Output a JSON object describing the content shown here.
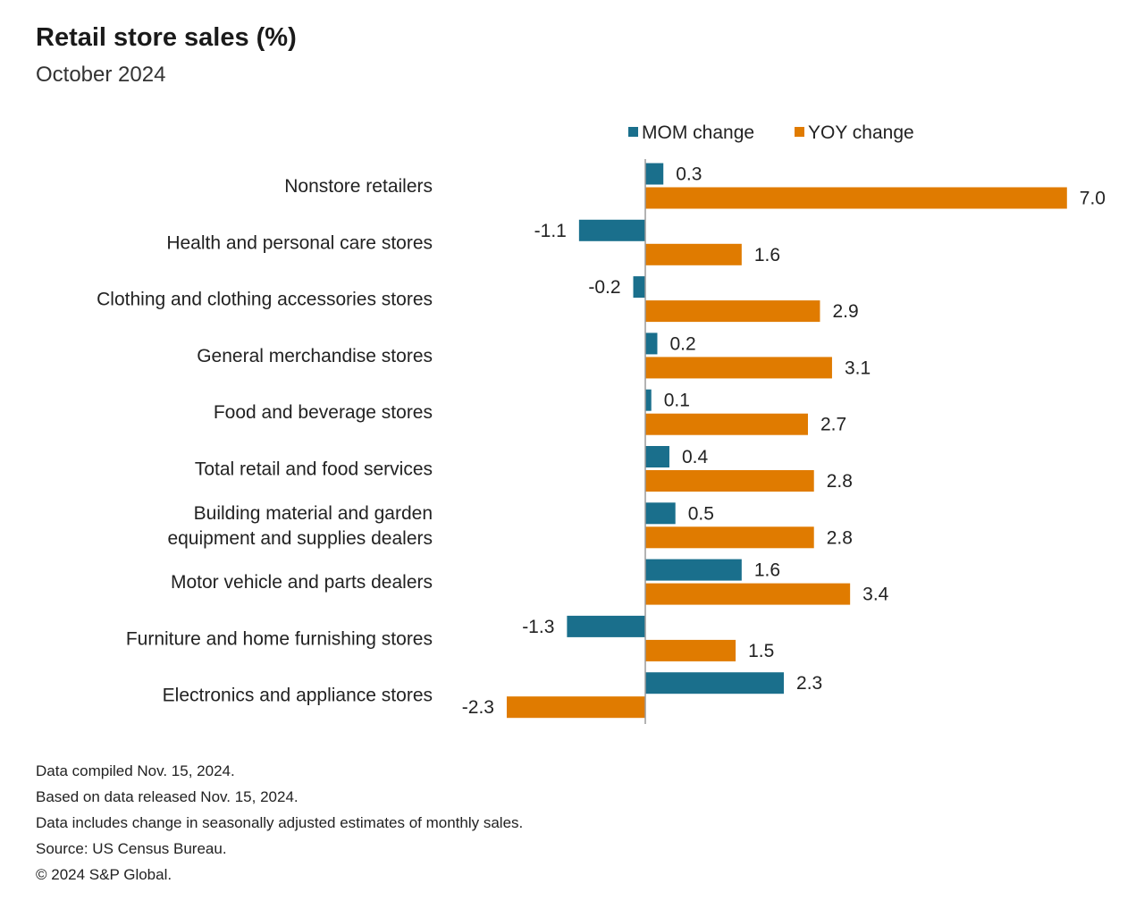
{
  "chart_data": {
    "type": "bar",
    "orientation": "horizontal",
    "title": "Retail store sales (%)",
    "subtitle": "October 2024",
    "categories": [
      "Nonstore retailers",
      "Health and personal care stores",
      "Clothing and clothing accessories stores",
      "General merchandise stores",
      "Food and beverage stores",
      "Total retail and food services",
      "Building material and garden equipment and supplies dealers",
      "Motor vehicle and parts dealers",
      "Furniture and home furnishing stores",
      "Electronics and appliance stores"
    ],
    "category_lines": [
      [
        "Nonstore retailers"
      ],
      [
        "Health and personal care stores"
      ],
      [
        "Clothing and clothing accessories stores"
      ],
      [
        "General merchandise stores"
      ],
      [
        "Food and beverage stores"
      ],
      [
        "Total retail and food services"
      ],
      [
        "Building material and garden",
        "equipment and supplies dealers"
      ],
      [
        "Motor vehicle and parts dealers"
      ],
      [
        "Furniture and home furnishing stores"
      ],
      [
        "Electronics and appliance stores"
      ]
    ],
    "series": [
      {
        "name": "MOM change",
        "color": "#1a6f8c",
        "values": [
          0.3,
          -1.1,
          -0.2,
          0.2,
          0.1,
          0.4,
          0.5,
          1.6,
          -1.3,
          2.3
        ],
        "labels": [
          "0.3",
          "-1.1",
          "-0.2",
          "0.2",
          "0.1",
          "0.4",
          "0.5",
          "1.6",
          "-1.3",
          "2.3"
        ]
      },
      {
        "name": "YOY change",
        "color": "#e07b00",
        "values": [
          7.0,
          1.6,
          2.9,
          3.1,
          2.7,
          2.8,
          2.8,
          3.4,
          1.5,
          -2.3
        ],
        "labels": [
          "7.0",
          "1.6",
          "2.9",
          "3.1",
          "2.7",
          "2.8",
          "2.8",
          "3.4",
          "1.5",
          "-2.3"
        ]
      }
    ],
    "xlim": [
      -2.3,
      7.0
    ],
    "grid": false,
    "legend": "top",
    "data_labels": true
  },
  "notes": [
    "Data compiled Nov. 15, 2024.",
    "Based on data released Nov. 15, 2024.",
    "Data includes change in seasonally adjusted estimates of monthly sales.",
    "Source: US Census Bureau.",
    "© 2024 S&P Global."
  ]
}
